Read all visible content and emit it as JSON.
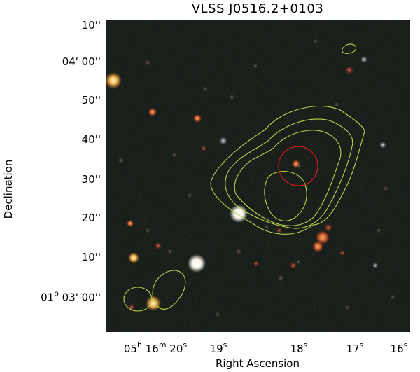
{
  "title": "VLSS J0516.2+0103",
  "xlabel": "Right Ascension",
  "ylabel": "Declination",
  "y_ticks": [
    {
      "main": "10''"
    },
    {
      "main": "04' 00''"
    },
    {
      "main": "50''"
    },
    {
      "main": "40''"
    },
    {
      "main": "30''"
    },
    {
      "main": "20''"
    },
    {
      "main": "10''"
    },
    {
      "main": "01",
      "sup": "o",
      "rest": " 03' 00''"
    }
  ],
  "x_ticks": [
    {
      "main": "05",
      "sup": "h",
      "rest": " 16",
      "sup2": "m",
      "rest2": " 20",
      "sup3": "s"
    },
    {
      "main": "19",
      "sup": "s"
    },
    {
      "main": "18",
      "sup": "s"
    },
    {
      "main": "17",
      "sup": "s"
    },
    {
      "main": "16",
      "sup": "s"
    }
  ],
  "colors": {
    "contour": "#b8d44a",
    "marker": "#d21a1a",
    "sky": "#0e130f"
  }
}
